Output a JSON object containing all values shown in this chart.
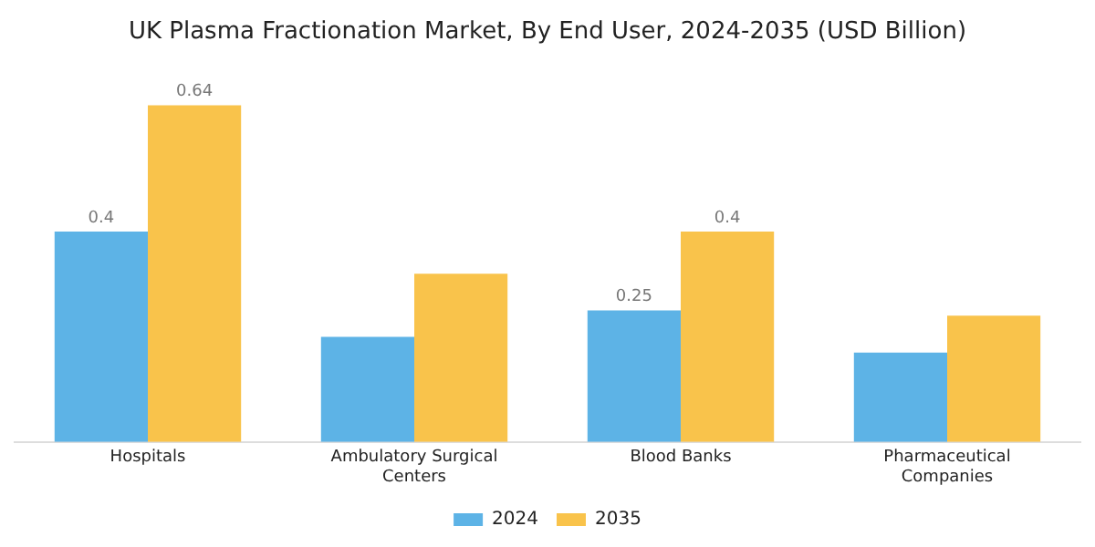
{
  "chart_data": {
    "type": "bar",
    "title": "UK Plasma Fractionation Market, By End User, 2024-2035 (USD Billion)",
    "categories": [
      "Hospitals",
      "Ambulatory Surgical Centers",
      "Blood Banks",
      "Pharmaceutical Companies"
    ],
    "series": [
      {
        "name": "2024",
        "color": "#5db3e6",
        "values": [
          0.4,
          0.2,
          0.25,
          0.17
        ],
        "value_labels": [
          "0.4",
          null,
          "0.25",
          null
        ]
      },
      {
        "name": "2035",
        "color": "#f9c34b",
        "values": [
          0.64,
          0.32,
          0.4,
          0.24
        ],
        "value_labels": [
          "0.64",
          null,
          "0.4",
          null
        ]
      }
    ],
    "legend": "bottom",
    "grid": false
  }
}
